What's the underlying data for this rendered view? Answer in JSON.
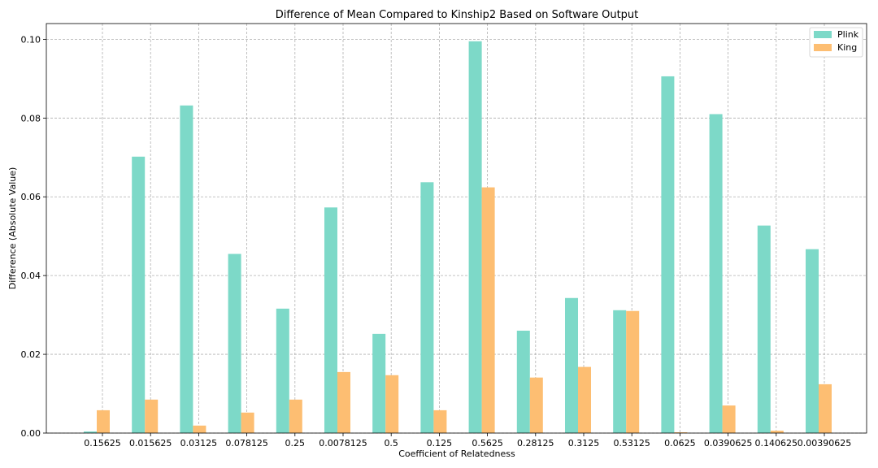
{
  "chart_data": {
    "type": "bar",
    "title": "Difference of Mean Compared to Kinship2 Based on Software Output",
    "xlabel": "Coefficient of Relatedness",
    "ylabel": "Difference (Absolute Value)",
    "ylim": [
      0,
      0.104
    ],
    "yticks": [
      "0.00",
      "0.02",
      "0.04",
      "0.06",
      "0.08",
      "0.10"
    ],
    "grid": true,
    "legend_position": "top-right",
    "categories": [
      "0.15625",
      "0.015625",
      "0.03125",
      "0.078125",
      "0.25",
      "0.0078125",
      "0.5",
      "0.125",
      "0.5625",
      "0.28125",
      "0.3125",
      "0.53125",
      "0.0625",
      "0.0390625",
      "0.140625",
      "0.00390625"
    ],
    "series": [
      {
        "name": "Plink",
        "color": "#7dd9c8",
        "values": [
          0.0004,
          0.0702,
          0.0832,
          0.0455,
          0.0316,
          0.0573,
          0.0252,
          0.0637,
          0.0995,
          0.026,
          0.0343,
          0.0312,
          0.0906,
          0.081,
          0.0527,
          0.0467
        ]
      },
      {
        "name": "King",
        "color": "#fdbe72",
        "values": [
          0.0058,
          0.0085,
          0.0019,
          0.0052,
          0.0085,
          0.0155,
          0.0147,
          0.0058,
          0.0624,
          0.0141,
          0.0168,
          0.031,
          0.0002,
          0.007,
          0.0006,
          0.0124
        ]
      }
    ]
  }
}
